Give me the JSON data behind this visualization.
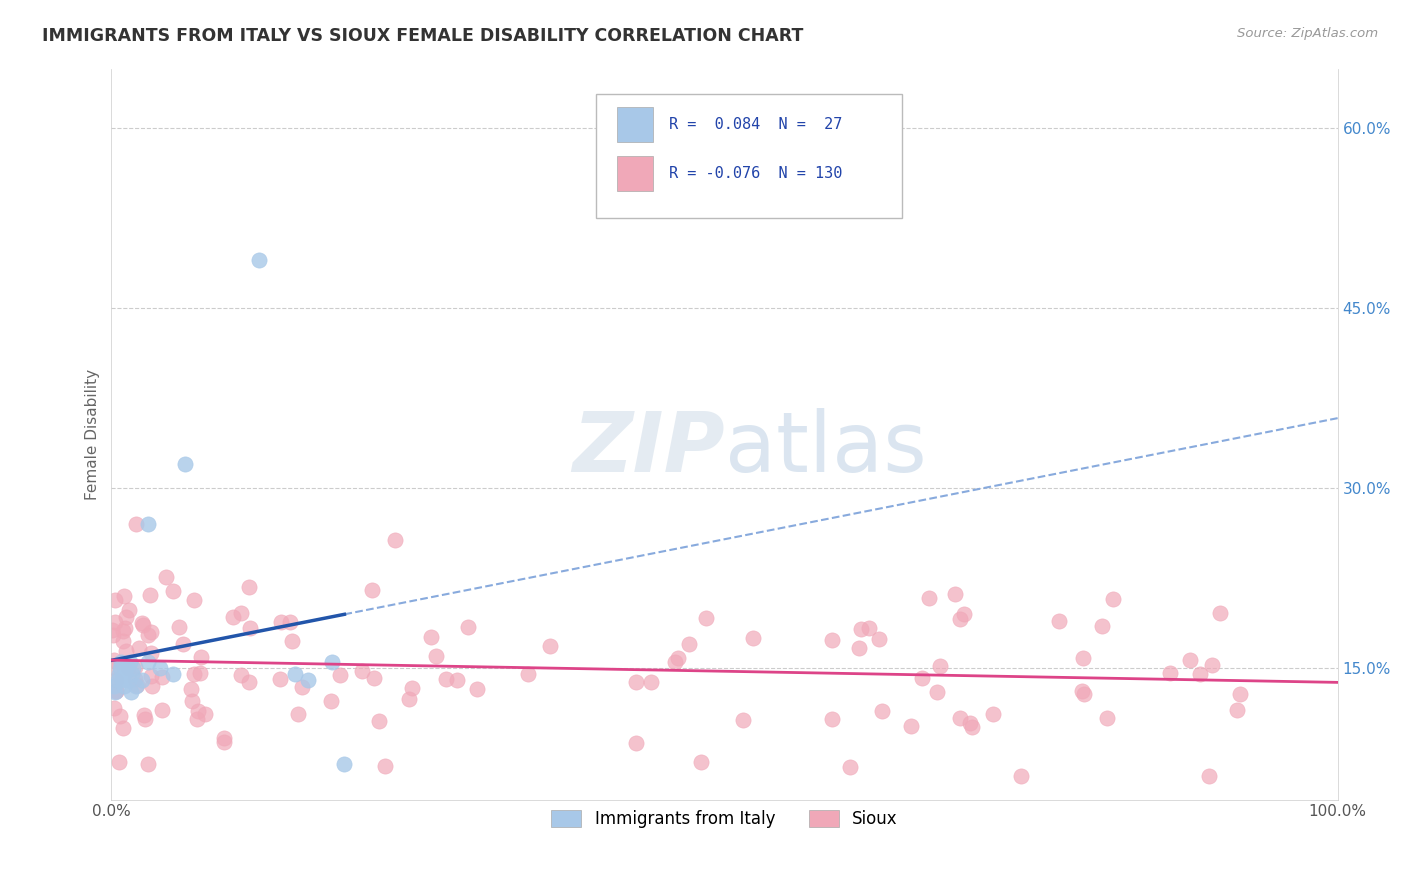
{
  "title": "IMMIGRANTS FROM ITALY VS SIOUX FEMALE DISABILITY CORRELATION CHART",
  "source": "Source: ZipAtlas.com",
  "ylabel": "Female Disability",
  "xlim": [
    0.0,
    1.0
  ],
  "ylim": [
    0.04,
    0.65
  ],
  "y_ticks": [
    0.15,
    0.3,
    0.45,
    0.6
  ],
  "y_tick_labels": [
    "15.0%",
    "30.0%",
    "45.0%",
    "60.0%"
  ],
  "italy_color": "#a8c8e8",
  "sioux_color": "#f0a8b8",
  "italy_line_color": "#2255aa",
  "sioux_line_color": "#dd4488",
  "italy_line_dash_color": "#88aadd",
  "grid_color": "#cccccc",
  "background_color": "#ffffff",
  "italy_N": 27,
  "sioux_N": 130,
  "italy_R": 0.084,
  "sioux_R": -0.076
}
